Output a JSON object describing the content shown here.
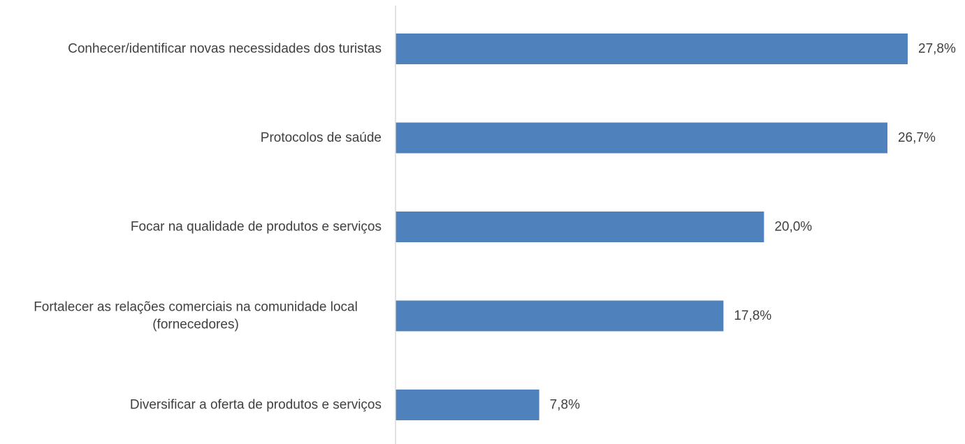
{
  "chart_data": {
    "type": "bar",
    "orientation": "horizontal",
    "categories": [
      "Conhecer/identificar novas necessidades dos turistas",
      "Protocolos de saúde",
      "Focar na qualidade de produtos e serviços",
      "Fortalecer as relações comerciais na comunidade local (fornecedores)",
      "Diversificar a oferta de produtos e serviços"
    ],
    "category_lines": [
      [
        "Conhecer/identificar novas necessidades dos turistas"
      ],
      [
        "Protocolos de saúde"
      ],
      [
        "Focar na qualidade de produtos e serviços"
      ],
      [
        "Fortalecer as relações comerciais na comunidade local",
        "(fornecedores)"
      ],
      [
        "Diversificar a oferta de produtos e serviços"
      ]
    ],
    "values": [
      27.8,
      26.7,
      20.0,
      17.8,
      7.8
    ],
    "data_labels": [
      "27,8%",
      "26,7%",
      "20,0%",
      "17,8%",
      "7,8%"
    ],
    "title": "",
    "xlabel": "",
    "ylabel": "",
    "xlim": [
      0,
      30
    ],
    "grid": false,
    "legend": "none",
    "bar_color": "#4F81BD",
    "axis_color": "#D9D9D9",
    "text_color": "#404040"
  }
}
